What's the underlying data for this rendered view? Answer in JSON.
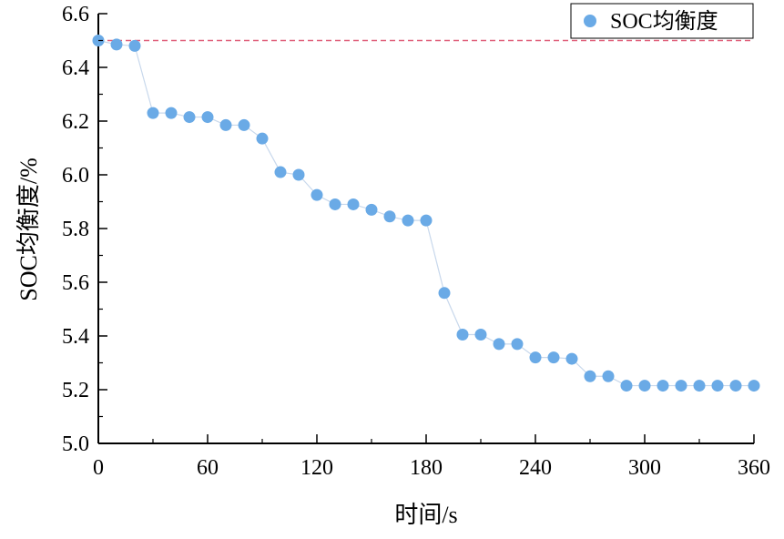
{
  "chart_data": {
    "type": "scatter",
    "xlabel": "时间/s",
    "ylabel": "SOC均衡度/%",
    "xlim": [
      0,
      360
    ],
    "ylim": [
      5.0,
      6.6
    ],
    "xticks": [
      0,
      60,
      120,
      180,
      240,
      300,
      360
    ],
    "yticks": [
      "5.0",
      "5.2",
      "5.4",
      "5.6",
      "5.8",
      "6.0",
      "6.2",
      "6.4",
      "6.6"
    ],
    "grid": false,
    "legend_position": "top-right",
    "reference_line": {
      "y": 6.5,
      "color": "#e0607a",
      "style": "dashed"
    },
    "series": [
      {
        "name": "SOC均衡度",
        "color": "#6aaae6",
        "line_color": "#c8d8ec",
        "x": [
          0,
          10,
          20,
          30,
          40,
          50,
          60,
          70,
          80,
          90,
          100,
          110,
          120,
          130,
          140,
          150,
          160,
          170,
          180,
          190,
          200,
          210,
          220,
          230,
          240,
          250,
          260,
          270,
          280,
          290,
          300,
          310,
          320,
          330,
          340,
          350,
          360
        ],
        "y": [
          6.5,
          6.485,
          6.48,
          6.23,
          6.23,
          6.215,
          6.215,
          6.185,
          6.185,
          6.135,
          6.01,
          6.0,
          5.925,
          5.89,
          5.89,
          5.87,
          5.845,
          5.83,
          5.83,
          5.56,
          5.405,
          5.405,
          5.37,
          5.37,
          5.32,
          5.32,
          5.315,
          5.25,
          5.25,
          5.215,
          5.215,
          5.215,
          5.215,
          5.215,
          5.215,
          5.215,
          5.215
        ]
      }
    ]
  }
}
